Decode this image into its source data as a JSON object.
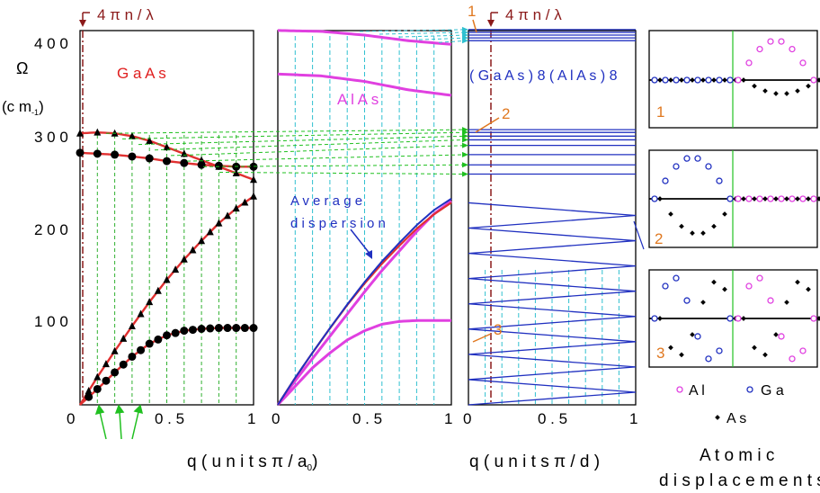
{
  "figure": {
    "omega_symbol": "Ω",
    "omega_unit": "(c m",
    "omega_unit_sup": "-1",
    "omega_unit_close": ")",
    "marker_label": "4 π n / λ",
    "xlabel_bulk": "q  ( u n i t s   π / a",
    "xlabel_bulk_sub": "0",
    "xlabel_bulk_close": ")",
    "xlabel_sl": "q  ( u n i t s   π / d )",
    "average_label_1": "A v e r a g e",
    "average_label_2": "d i s p e r s i o n",
    "displacements_title_1": "A t o m i c",
    "displacements_title_2": "d i s p l a c e m e n t s",
    "legend_al": "A l",
    "legend_ga": "G a",
    "legend_as": "A s"
  },
  "chart_data": [
    {
      "type": "line",
      "title": "G a A s",
      "xlim": [
        0,
        1
      ],
      "ylim": [
        0,
        400
      ],
      "xticks": [
        "0",
        "0 . 5",
        "1"
      ],
      "yticks": [
        "1 0 0",
        "2 0 0",
        "3 0 0",
        "4 0 0"
      ],
      "series": [
        {
          "values_x": [
            0,
            0.1,
            0.2,
            0.3,
            0.4,
            0.5,
            0.6,
            0.7,
            0.8,
            0.9,
            1
          ],
          "values_y": [
            293,
            294,
            293,
            290,
            285,
            278,
            271,
            264,
            257,
            250,
            243
          ]
        },
        {
          "values_x": [
            0,
            0.1,
            0.2,
            0.3,
            0.4,
            0.5,
            0.6,
            0.7,
            0.8,
            0.9,
            1
          ],
          "values_y": [
            272,
            271,
            270,
            268,
            266,
            263,
            261,
            259,
            258,
            257,
            257
          ]
        },
        {
          "values_x": [
            0,
            0.1,
            0.2,
            0.3,
            0.4,
            0.5,
            0.6,
            0.7,
            0.8,
            0.9,
            1
          ],
          "values_y": [
            0,
            30,
            58,
            85,
            111,
            135,
            157,
            177,
            196,
            212,
            225
          ]
        },
        {
          "values_x": [
            0,
            0.1,
            0.2,
            0.3,
            0.4,
            0.5,
            0.6,
            0.7,
            0.8,
            0.9,
            1
          ],
          "values_y": [
            0,
            17,
            35,
            52,
            66,
            75,
            80,
            82,
            83,
            83,
            83
          ]
        }
      ]
    },
    {
      "type": "line",
      "title": "A l A s",
      "xlim": [
        0,
        1
      ],
      "ylim": [
        0,
        400
      ],
      "xticks": [
        "0",
        "0 . 5",
        "1"
      ],
      "series": [
        {
          "values_x": [
            0,
            0.25,
            0.5,
            0.75,
            1
          ],
          "values_y": [
            404,
            403,
            399,
            393,
            389
          ]
        },
        {
          "values_x": [
            0,
            0.25,
            0.5,
            0.75,
            1
          ],
          "values_y": [
            357,
            355,
            349,
            340,
            334
          ]
        },
        {
          "values_x": [
            0,
            0.1,
            0.2,
            0.3,
            0.4,
            0.5,
            0.6,
            0.7,
            0.8,
            0.9,
            1
          ],
          "values_y": [
            0,
            26,
            50,
            74,
            98,
            122,
            145,
            166,
            187,
            206,
            220
          ]
        },
        {
          "values_x": [
            0,
            0.1,
            0.2,
            0.3,
            0.4,
            0.5,
            0.6,
            0.7,
            0.8,
            0.9,
            1
          ],
          "values_y": [
            0,
            20,
            40,
            56,
            70,
            80,
            87,
            90,
            91,
            91,
            91
          ]
        }
      ]
    },
    {
      "type": "line",
      "title": "( G a A s ) 8 ( A l A s ) 8",
      "xlim": [
        0,
        1
      ],
      "ylim": [
        0,
        400
      ],
      "xticks": [
        "0",
        "0 . 5",
        "1"
      ],
      "flat_levels": [
        405,
        402,
        399,
        396,
        393,
        297,
        294,
        290,
        286,
        280,
        270,
        259,
        249
      ]
    }
  ],
  "panels": [
    {
      "label": "1"
    },
    {
      "label": "2"
    },
    {
      "label": "3"
    }
  ]
}
